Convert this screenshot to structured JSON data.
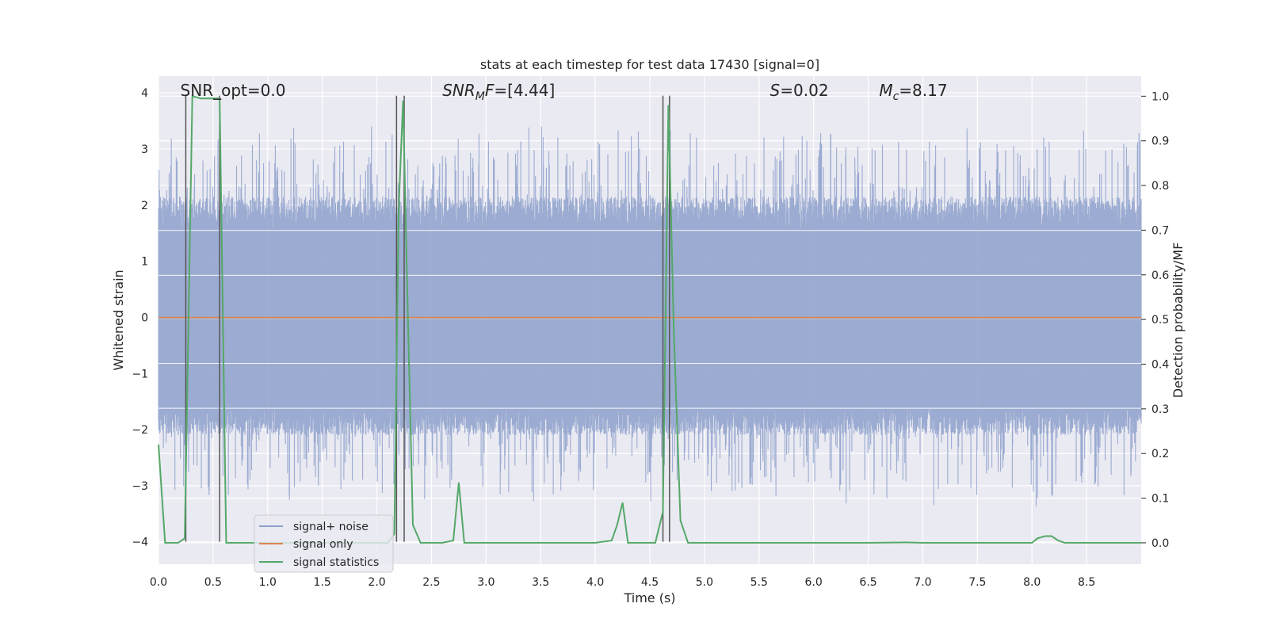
{
  "chart_data": {
    "type": "line",
    "title": "stats at each timestep for test data 17430 [signal=0]",
    "xlabel": "Time (s)",
    "ylabel": "Whitened strain",
    "y2label": "Detection probability/MF",
    "xlim": [
      0,
      9.0
    ],
    "ylim": [
      -4.4,
      4.3
    ],
    "y2lim": [
      -0.048,
      1.045
    ],
    "xticks": [
      0,
      0.5,
      1.0,
      1.5,
      2.0,
      2.5,
      3.0,
      3.5,
      4.0,
      4.5,
      5.0,
      5.5,
      6.0,
      6.5,
      7.0,
      7.5,
      8.0,
      8.5
    ],
    "xtick_labels": [
      "0.0",
      "0.5",
      "1.0",
      "1.5",
      "2.0",
      "2.5",
      "3.0",
      "3.5",
      "4.0",
      "4.5",
      "5.0",
      "5.5",
      "6.0",
      "6.5",
      "7.0",
      "7.5",
      "8.0",
      "8.5"
    ],
    "yticks": [
      -4,
      -3,
      -2,
      -1,
      0,
      1,
      2,
      3,
      4
    ],
    "ytick_labels": [
      "−4",
      "−3",
      "−2",
      "−1",
      "0",
      "1",
      "2",
      "3",
      "4"
    ],
    "y2ticks": [
      0.0,
      0.1,
      0.2,
      0.3,
      0.4,
      0.5,
      0.6,
      0.7,
      0.8,
      0.9,
      1.0
    ],
    "y2tick_labels": [
      "0.0",
      "0.1",
      "0.2",
      "0.3",
      "0.4",
      "0.5",
      "0.6",
      "0.7",
      "0.8",
      "0.9",
      "1.0"
    ],
    "annotations": [
      {
        "id": "snr-opt",
        "label": "SNR_opt=0.0",
        "x": 0.2,
        "y": 4.0
      },
      {
        "id": "snr-mf",
        "label": "SNR_MF=[4.44]",
        "x": 2.6,
        "y": 4.0
      },
      {
        "id": "s-stat",
        "label": "S=0.02",
        "x": 5.6,
        "y": 4.0
      },
      {
        "id": "chirp-mass",
        "label": "M_c=8.17",
        "x": 6.6,
        "y": 4.0
      }
    ],
    "vertical_markers": [
      {
        "x": 0.25,
        "y_from": -4.0,
        "y_to": 3.95
      },
      {
        "x": 0.56,
        "y_from": -4.0,
        "y_to": 3.95
      },
      {
        "x": 2.18,
        "y_from": -4.0,
        "y_to": 3.95
      },
      {
        "x": 2.25,
        "y_from": -4.0,
        "y_to": 3.95
      },
      {
        "x": 4.62,
        "y_from": -4.0,
        "y_to": 3.95
      },
      {
        "x": 4.68,
        "y_from": -4.0,
        "y_to": 3.95
      }
    ],
    "series": [
      {
        "name": "signal+ noise",
        "color": "#8da0cb",
        "type": "noise",
        "envelope": [
          -1.6,
          1.55
        ],
        "extreme_range": [
          -3.9,
          4.0
        ],
        "sample_rate": 400
      },
      {
        "name": "signal only",
        "color": "#dd8452",
        "type": "line",
        "x": [
          0,
          9.0
        ],
        "y": [
          0,
          0
        ]
      },
      {
        "name": "signal statistics",
        "color": "#55a868",
        "type": "line",
        "axis": "right",
        "x": [
          0.0,
          0.06,
          0.18,
          0.24,
          0.31,
          0.39,
          0.47,
          0.55,
          0.56,
          0.62,
          0.7,
          0.8,
          0.9,
          1.0,
          1.2,
          1.4,
          1.6,
          1.8,
          2.0,
          2.1,
          2.16,
          2.2,
          2.24,
          2.28,
          2.33,
          2.4,
          2.5,
          2.6,
          2.7,
          2.75,
          2.8,
          2.9,
          3.0,
          3.2,
          3.4,
          3.6,
          3.8,
          4.0,
          4.15,
          4.2,
          4.25,
          4.3,
          4.4,
          4.55,
          4.62,
          4.67,
          4.72,
          4.78,
          4.85,
          5.0,
          5.5,
          6.0,
          6.5,
          6.85,
          7.0,
          7.5,
          8.0,
          8.05,
          8.12,
          8.18,
          8.24,
          8.3,
          8.5,
          9.0
        ],
        "y": [
          0.22,
          0.0,
          0.0,
          0.01,
          1.0,
          0.995,
          0.995,
          0.995,
          0.99,
          0.0,
          0.0,
          0.0,
          0.0,
          0.0,
          0.0,
          0.0,
          0.0,
          0.0,
          0.0,
          0.0,
          0.02,
          0.75,
          0.99,
          0.55,
          0.04,
          0.0,
          0.0,
          0.0,
          0.005,
          0.135,
          0.0,
          0.0,
          0.0,
          0.0,
          0.0,
          0.0,
          0.0,
          0.0,
          0.005,
          0.04,
          0.09,
          0.0,
          0.0,
          0.0,
          0.07,
          0.98,
          0.47,
          0.05,
          0.0,
          0.0,
          0.0,
          0.0,
          0.0,
          0.001,
          0.0,
          0.0,
          0.0,
          0.01,
          0.015,
          0.015,
          0.005,
          0.0,
          0.0,
          0.0
        ]
      }
    ],
    "legend_position": "lower-left",
    "grid": true
  }
}
